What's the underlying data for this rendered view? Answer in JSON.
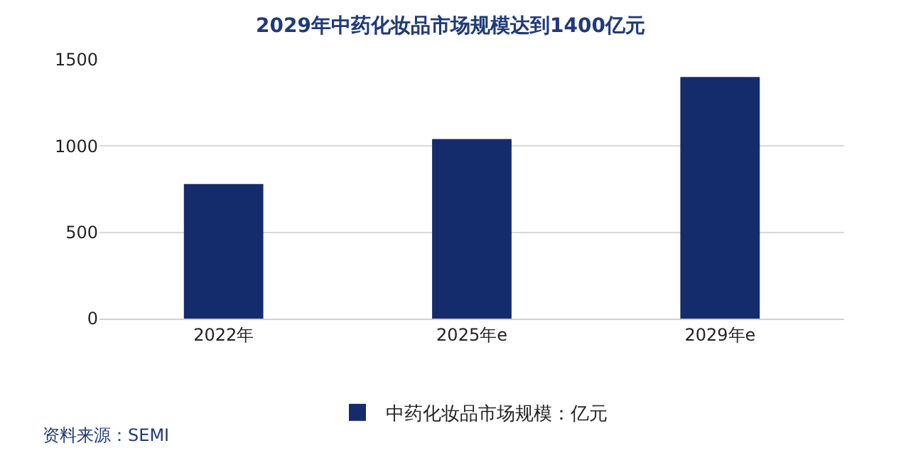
{
  "chart_data": {
    "type": "bar",
    "title": "2029年中药化妆品市场规模达到1400亿元",
    "categories": [
      "2022年",
      "2025年e",
      "2029年e"
    ],
    "series": [
      {
        "name": "中药化妆品市场规模：亿元",
        "color": "#142c6c",
        "values": [
          780,
          1040,
          1400
        ]
      }
    ],
    "ylim": [
      0,
      1500
    ],
    "yticks": [
      0,
      500,
      1000,
      1500
    ],
    "grid": "y",
    "legend": "bottom",
    "annotations": [
      "资料来源：SEMI"
    ]
  }
}
